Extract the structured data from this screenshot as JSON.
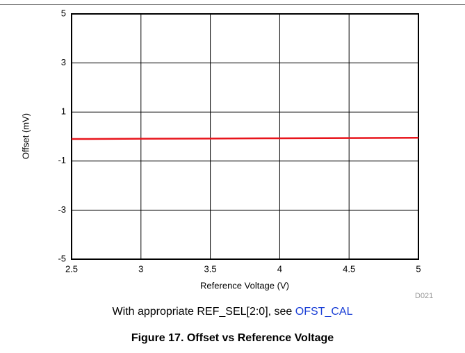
{
  "chart_data": {
    "type": "line",
    "x": [
      2.5,
      3,
      3.5,
      4,
      4.5,
      5
    ],
    "series": [
      {
        "color": "#e8141b",
        "values": [
          -0.1,
          -0.09,
          -0.08,
          -0.07,
          -0.06,
          -0.05
        ]
      }
    ],
    "xlim": [
      2.5,
      5
    ],
    "xticks": [
      2.5,
      3,
      3.5,
      4,
      4.5,
      5
    ],
    "ylim": [
      -5,
      5
    ],
    "yticks": [
      -5,
      -3,
      -1,
      1,
      3,
      5
    ],
    "grid": true,
    "xlabel": "Reference Voltage (V)",
    "ylabel": "Offset (mV)",
    "annotation": "D021"
  },
  "caption": {
    "text": "With appropriate REF_SEL[2:0], see ",
    "link": "OFST_CAL"
  },
  "figure_title": "Figure 17. Offset vs Reference Voltage"
}
